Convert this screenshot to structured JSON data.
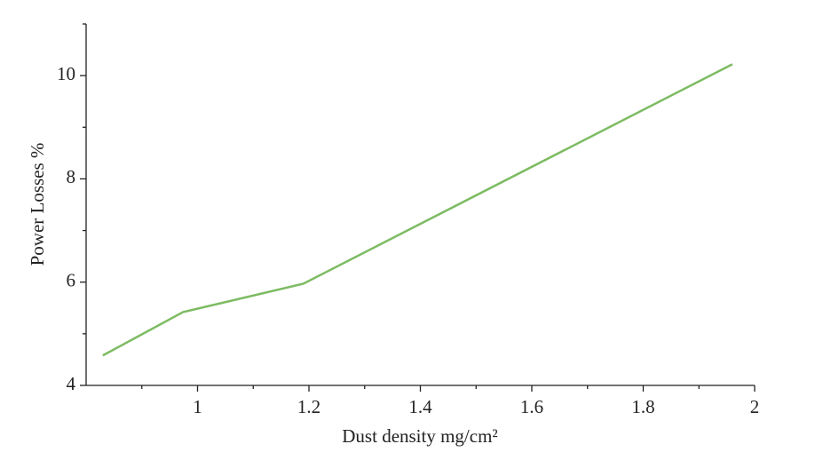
{
  "chart_data": {
    "type": "line",
    "x_label": "Dust density mg/cm²",
    "y_label": "Power Losses %",
    "series": [
      {
        "color": "#7dbb62",
        "x": [
          0.83,
          0.974,
          1.19,
          1.96
        ],
        "values": [
          4.58,
          5.42,
          5.97,
          10.22
        ]
      }
    ],
    "xlim": [
      0.8,
      2
    ],
    "xticks": [
      1,
      1.2,
      1.4,
      1.6,
      1.8,
      2
    ],
    "x_minor_ticks": [
      0.9,
      1.1,
      1.3,
      1.5,
      1.7,
      1.9
    ],
    "ylim": [
      4,
      11
    ],
    "yticks": [
      4,
      6,
      8,
      10
    ],
    "y_minor_ticks": [
      5,
      7,
      9,
      11
    ],
    "grid": false
  }
}
